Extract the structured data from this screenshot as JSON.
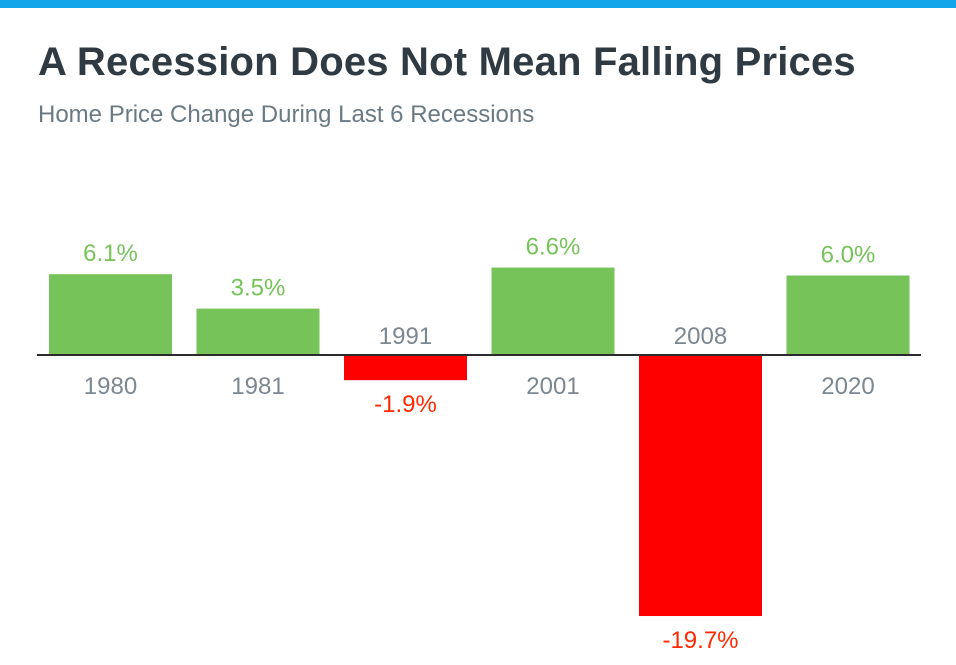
{
  "header": {
    "title": "A Recession Does Not Mean Falling Prices",
    "subtitle": "Home Price Change During Last 6 Recessions"
  },
  "colors": {
    "accent_bar": "#12a6e8",
    "positive": "#76c35a",
    "negative": "#ff0000",
    "negative_label": "#ff2a00",
    "category_label": "#7c8791",
    "axis": "#2b2b2b"
  },
  "chart_data": {
    "type": "bar",
    "title": "A Recession Does Not Mean Falling Prices",
    "subtitle": "Home Price Change During Last 6 Recessions",
    "xlabel": "",
    "ylabel": "",
    "categories": [
      "1980",
      "1981",
      "1991",
      "2001",
      "2008",
      "2020"
    ],
    "values": [
      6.1,
      3.5,
      -1.9,
      6.6,
      -19.7,
      6.0
    ],
    "data_labels": [
      "6.1%",
      "3.5%",
      "-1.9%",
      "6.6%",
      "-19.7%",
      "6.0%"
    ],
    "ylim": [
      -20,
      7
    ],
    "grid": false,
    "legend": "none"
  }
}
